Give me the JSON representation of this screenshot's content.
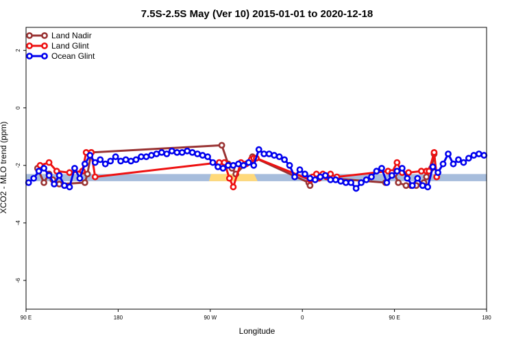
{
  "chart_data": {
    "type": "line",
    "title": "7.5S-2.5S May (Ver 10)   2015-01-01 to 2020-12-18",
    "xlabel": "Longitude",
    "ylabel": "XCO2 - MLO trend (ppm)",
    "xlim": [
      90,
      450
    ],
    "ylim": [
      -7,
      2.8
    ],
    "x_ticks": [
      {
        "value": 90,
        "label": "90 E"
      },
      {
        "value": 162,
        "label": "180"
      },
      {
        "value": 234,
        "label": "90 W"
      },
      {
        "value": 306,
        "label": "0"
      },
      {
        "value": 378,
        "label": "90 E"
      },
      {
        "value": 450,
        "label": "180"
      }
    ],
    "y_ticks": [
      {
        "value": 2,
        "label": "2"
      },
      {
        "value": 0,
        "label": "0"
      },
      {
        "value": -2,
        "label": "-2"
      },
      {
        "value": -4,
        "label": "-4"
      },
      {
        "value": -6,
        "label": "-6"
      }
    ],
    "legend": {
      "position": "top-left"
    },
    "band": {
      "y_min": -2.55,
      "y_max": -2.3,
      "color": "#a7bddc"
    },
    "highlight_band": {
      "x_min": 233,
      "x_max": 271,
      "y_min": -2.55,
      "y_max": -2.3,
      "color": "#ffd97a"
    },
    "series": [
      {
        "name": "Land Nadir",
        "color": "#993333",
        "x": [
          99,
          104,
          108,
          111,
          116,
          136,
          138,
          141,
          243,
          248,
          251,
          254,
          267,
          311,
          312,
          315,
          371,
          378,
          381,
          387,
          391,
          395,
          401,
          403,
          407,
          409,
          411
        ],
        "y": [
          -2.1,
          -2.6,
          -2.3,
          -2.5,
          -2.65,
          -2.6,
          -2.3,
          -1.55,
          -1.3,
          -1.95,
          -2.1,
          -2.3,
          -1.7,
          -2.6,
          -2.7,
          -2.4,
          -2.6,
          -2.3,
          -2.6,
          -2.7,
          -2.7,
          -2.7,
          -2.6,
          -2.4,
          -2.1,
          -1.6,
          -2.4
        ]
      },
      {
        "name": "Land Glint",
        "color": "#ee1111",
        "x": [
          101,
          108,
          114,
          124,
          134,
          137,
          141,
          144,
          241,
          245,
          249,
          252,
          258,
          262,
          266,
          268,
          270,
          312,
          314,
          317,
          319,
          322,
          325,
          328,
          330,
          333,
          373,
          376,
          380,
          384,
          389,
          399,
          403,
          405,
          409,
          411
        ],
        "y": [
          -2.0,
          -1.9,
          -2.2,
          -2.25,
          -2.2,
          -1.55,
          -1.55,
          -2.4,
          -1.9,
          -1.9,
          -2.45,
          -2.75,
          -1.9,
          -1.95,
          -1.8,
          -1.75,
          -1.75,
          -2.5,
          -2.4,
          -2.3,
          -2.45,
          -2.3,
          -2.4,
          -2.3,
          -2.45,
          -2.4,
          -2.2,
          -2.25,
          -1.9,
          -2.25,
          -2.25,
          -2.2,
          -2.2,
          -2.2,
          -1.55,
          -2.4
        ]
      },
      {
        "name": "Ocean Glint",
        "color": "#0000ee",
        "x": [
          92,
          96,
          100,
          104,
          108,
          112,
          116,
          120,
          124,
          128,
          132,
          136,
          140,
          144,
          148,
          152,
          156,
          160,
          164,
          168,
          172,
          176,
          180,
          184,
          188,
          192,
          196,
          200,
          204,
          208,
          212,
          216,
          220,
          224,
          228,
          232,
          236,
          240,
          244,
          248,
          252,
          256,
          260,
          264,
          268,
          272,
          276,
          280,
          284,
          288,
          292,
          296,
          300,
          304,
          308,
          312,
          316,
          320,
          324,
          328,
          332,
          336,
          340,
          344,
          348,
          352,
          356,
          360,
          364,
          368,
          372,
          376,
          380,
          384,
          388,
          392,
          396,
          400,
          404,
          408,
          412,
          416,
          420,
          424,
          428,
          432,
          436,
          440,
          444,
          448
        ],
        "y": [
          -2.6,
          -2.45,
          -2.2,
          -2.1,
          -2.35,
          -2.65,
          -2.35,
          -2.7,
          -2.75,
          -2.1,
          -2.45,
          -1.95,
          -1.65,
          -1.9,
          -1.8,
          -1.95,
          -1.85,
          -1.7,
          -1.85,
          -1.8,
          -1.85,
          -1.8,
          -1.7,
          -1.7,
          -1.65,
          -1.6,
          -1.55,
          -1.6,
          -1.5,
          -1.55,
          -1.55,
          -1.5,
          -1.55,
          -1.6,
          -1.65,
          -1.7,
          -1.9,
          -2.05,
          -2.1,
          -2.0,
          -2.0,
          -1.95,
          -2.0,
          -1.9,
          -2.0,
          -1.45,
          -1.6,
          -1.6,
          -1.65,
          -1.7,
          -1.8,
          -2.0,
          -2.4,
          -2.15,
          -2.3,
          -2.45,
          -2.5,
          -2.4,
          -2.35,
          -2.5,
          -2.5,
          -2.55,
          -2.6,
          -2.6,
          -2.8,
          -2.6,
          -2.5,
          -2.4,
          -2.2,
          -2.1,
          -2.6,
          -2.35,
          -2.2,
          -2.1,
          -2.45,
          -2.7,
          -2.45,
          -2.7,
          -2.75,
          -2.05,
          -2.25,
          -1.95,
          -1.6,
          -1.95,
          -1.8,
          -1.9,
          -1.75,
          -1.65,
          -1.6,
          -1.65
        ]
      }
    ]
  }
}
